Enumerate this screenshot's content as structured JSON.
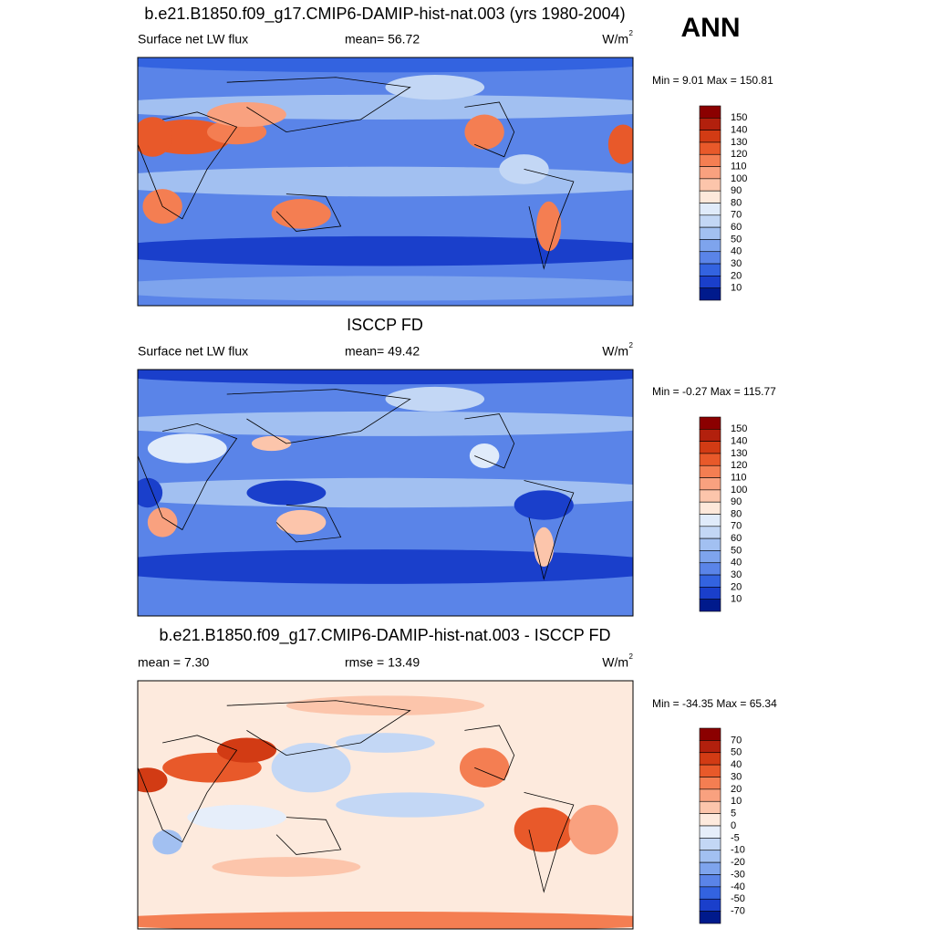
{
  "title": "ANN",
  "panels": [
    {
      "title": "b.e21.B1850.f09_g17.CMIP6-DAMIP-hist-nat.003 (yrs 1980-2004)",
      "left": "Surface net LW flux",
      "center": "mean=  56.72",
      "units": "W/m",
      "units_sup": "2",
      "minmax": "Min =   9.01 Max = 150.81",
      "colorbar": [
        150,
        140,
        130,
        120,
        110,
        100,
        90,
        80,
        70,
        60,
        50,
        40,
        30,
        20,
        10
      ]
    },
    {
      "title": "ISCCP FD",
      "left": "Surface net LW flux",
      "center": "mean=  49.42",
      "units": "W/m",
      "units_sup": "2",
      "minmax": "Min =  -0.27 Max = 115.77",
      "colorbar": [
        150,
        140,
        130,
        120,
        110,
        100,
        90,
        80,
        70,
        60,
        50,
        40,
        30,
        20,
        10
      ]
    },
    {
      "title": "b.e21.B1850.f09_g17.CMIP6-DAMIP-hist-nat.003 - ISCCP FD",
      "left": "mean =   7.30",
      "center": "rmse =  13.49",
      "units": "W/m",
      "units_sup": "2",
      "minmax": "Min = -34.35 Max =  65.34",
      "colorbar": [
        70,
        50,
        40,
        30,
        20,
        10,
        5,
        0,
        -5,
        -10,
        -20,
        -30,
        -40,
        -50,
        -70
      ]
    }
  ]
}
